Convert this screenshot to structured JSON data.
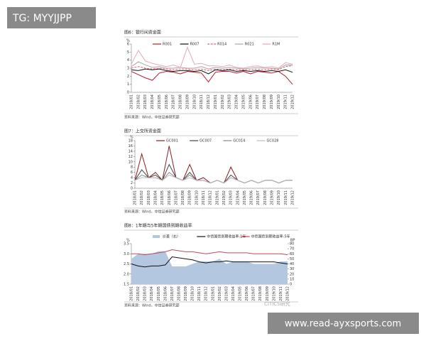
{
  "overlay_tag": "TG: MYYJJPP",
  "watermark": "CITICS研究",
  "site_url": "www.read-ayxsports.com",
  "chart_data": [
    {
      "type": "line",
      "title": "图6：银行间资金面",
      "y_label": "%",
      "source": "资料来源：Wind，中信证券研究部",
      "categories": [
        "2018/01",
        "2018/02",
        "2018/03",
        "2018/04",
        "2018/05",
        "2018/06",
        "2018/07",
        "2018/08",
        "2018/09",
        "2018/10",
        "2018/11",
        "2018/12",
        "2019/01",
        "2019/02",
        "2019/03",
        "2019/04",
        "2019/05",
        "2019/06",
        "2019/07",
        "2019/08",
        "2019/09",
        "2019/10",
        "2019/11",
        "2019/12"
      ],
      "ylim": [
        0,
        6
      ],
      "yticks": [
        0,
        1,
        2,
        3,
        4,
        5,
        6
      ],
      "series": [
        {
          "name": "R001",
          "color": "#c0182b",
          "values": [
            2.6,
            2.2,
            1.8,
            1.5,
            2.4,
            2.6,
            2.5,
            2.3,
            2.6,
            2.5,
            2.4,
            1.3,
            2.5,
            2.6,
            2.6,
            2.4,
            2.6,
            2.3,
            2.6,
            2.5,
            2.4,
            2.6,
            2.0,
            1.0
          ]
        },
        {
          "name": "R007",
          "color": "#111111",
          "values": [
            2.8,
            2.7,
            2.9,
            2.8,
            2.9,
            2.7,
            2.6,
            2.7,
            2.7,
            2.6,
            2.7,
            2.3,
            2.8,
            2.7,
            2.8,
            2.6,
            2.7,
            2.6,
            2.7,
            2.6,
            2.7,
            2.6,
            2.8,
            2.5
          ]
        },
        {
          "name": "R014",
          "color": "#d66a7a",
          "dash": true,
          "values": [
            3.0,
            3.2,
            3.0,
            2.9,
            3.0,
            2.9,
            2.8,
            2.9,
            2.9,
            2.8,
            2.9,
            2.7,
            2.9,
            2.8,
            2.9,
            2.8,
            2.8,
            2.8,
            2.9,
            2.8,
            2.9,
            2.8,
            3.2,
            3.3
          ]
        },
        {
          "name": "R021",
          "color": "#b8a0a6",
          "values": [
            3.2,
            3.8,
            3.4,
            3.1,
            3.2,
            3.0,
            3.0,
            3.1,
            3.0,
            3.0,
            3.2,
            2.9,
            3.1,
            3.0,
            3.1,
            3.0,
            2.9,
            3.0,
            3.1,
            3.0,
            3.0,
            2.9,
            3.4,
            3.4
          ]
        },
        {
          "name": "R1M",
          "color": "#e8a8b4",
          "values": [
            3.5,
            5.2,
            3.9,
            3.6,
            3.4,
            3.2,
            3.4,
            3.1,
            5.6,
            3.5,
            3.6,
            3.3,
            3.3,
            3.2,
            3.4,
            3.1,
            3.0,
            3.2,
            3.3,
            3.1,
            3.2,
            3.0,
            3.7,
            3.5
          ]
        }
      ]
    },
    {
      "type": "line",
      "title": "图7：上交所资金面",
      "y_label": "%",
      "source": "资料来源：Wind，中信证券研究部",
      "categories": [
        "2018/01",
        "2018/02",
        "2018/03",
        "2018/04",
        "2018/05",
        "2018/06",
        "2018/07",
        "2018/08",
        "2018/09",
        "2018/10",
        "2018/11",
        "2018/12",
        "2019/01",
        "2019/02",
        "2019/03",
        "2019/04",
        "2019/05",
        "2019/06",
        "2019/07",
        "2019/08",
        "2019/09",
        "2019/10",
        "2019/11",
        "2019/12"
      ],
      "ylim": [
        0,
        18
      ],
      "yticks": [
        0,
        2,
        4,
        6,
        8,
        10,
        12,
        14,
        16,
        18
      ],
      "series": [
        {
          "name": "GC001",
          "color": "#8b1a22",
          "values": [
            3,
            13,
            4,
            6,
            3,
            16,
            4,
            3,
            9,
            3,
            4,
            2,
            3,
            2,
            8,
            3,
            2,
            3,
            2,
            3,
            3,
            2,
            3,
            3
          ]
        },
        {
          "name": "GC007",
          "color": "#444444",
          "values": [
            3,
            7,
            4,
            5,
            3,
            9,
            4,
            3,
            6,
            3,
            3,
            2,
            3,
            2,
            5,
            3,
            2,
            3,
            2,
            3,
            3,
            2,
            3,
            3
          ]
        },
        {
          "name": "GC014",
          "color": "#888888",
          "values": [
            3,
            5,
            4,
            4,
            3,
            6,
            4,
            3,
            5,
            3,
            3,
            2,
            3,
            2,
            4,
            3,
            2,
            3,
            2,
            3,
            3,
            2,
            3,
            3
          ]
        },
        {
          "name": "GC028",
          "color": "#bbbbbb",
          "values": [
            3,
            4,
            4,
            4,
            3,
            5,
            4,
            3,
            4,
            3,
            3,
            2,
            3,
            2,
            4,
            3,
            2,
            3,
            2,
            3,
            3,
            2,
            3,
            3
          ]
        }
      ]
    },
    {
      "type": "line",
      "title": "图8：1年期与5年期国债到期收益率",
      "y_label": "%",
      "y2_label": "BP",
      "source": "资料来源：Wind，中信证券研究部",
      "categories": [
        "2018/01",
        "2018/02",
        "2018/03",
        "2018/04",
        "2018/05",
        "2018/06",
        "2018/07",
        "2018/08",
        "2018/09",
        "2018/10",
        "2018/11",
        "2018/12",
        "2019/01",
        "2019/02",
        "2019/03",
        "2019/04",
        "2019/05",
        "2019/06",
        "2019/07",
        "2019/08",
        "2019/09",
        "2019/10",
        "2019/11",
        "2019/12"
      ],
      "ylim": [
        1.5,
        3.5
      ],
      "yticks": [
        1.5,
        {
          "value": 2,
          "label": "2.0"
        },
        2.5,
        {
          "value": 3,
          "label": "3.0"
        },
        3.5
      ],
      "y2lim": [
        0,
        80
      ],
      "y2ticks": [
        0,
        10,
        20,
        30,
        40,
        50,
        60,
        70,
        80
      ],
      "series": [
        {
          "name": "价差（右）",
          "color": "#b4c7e0",
          "kind": "area",
          "axis": "y2",
          "values": [
            50,
            60,
            60,
            60,
            65,
            65,
            35,
            35,
            35,
            40,
            45,
            45,
            45,
            50,
            40,
            45,
            45,
            45,
            40,
            40,
            40,
            40,
            45,
            45
          ]
        },
        {
          "name": "中债国债到期收益率:1年",
          "color": "#111111",
          "values": [
            2.5,
            2.4,
            2.35,
            2.4,
            2.4,
            2.45,
            2.85,
            2.8,
            2.75,
            2.7,
            2.6,
            2.55,
            2.6,
            2.6,
            2.65,
            2.6,
            2.6,
            2.6,
            2.6,
            2.6,
            2.6,
            2.6,
            2.55,
            2.5
          ]
        },
        {
          "name": "中债国债到期收益率:5年",
          "color": "#c0485a",
          "values": [
            3.0,
            3.0,
            2.95,
            3.0,
            3.05,
            3.1,
            3.2,
            3.15,
            3.1,
            3.1,
            3.05,
            3.0,
            3.05,
            3.1,
            3.05,
            3.05,
            3.05,
            3.05,
            3.0,
            3.0,
            3.0,
            3.0,
            3.0,
            2.95
          ]
        }
      ]
    }
  ]
}
